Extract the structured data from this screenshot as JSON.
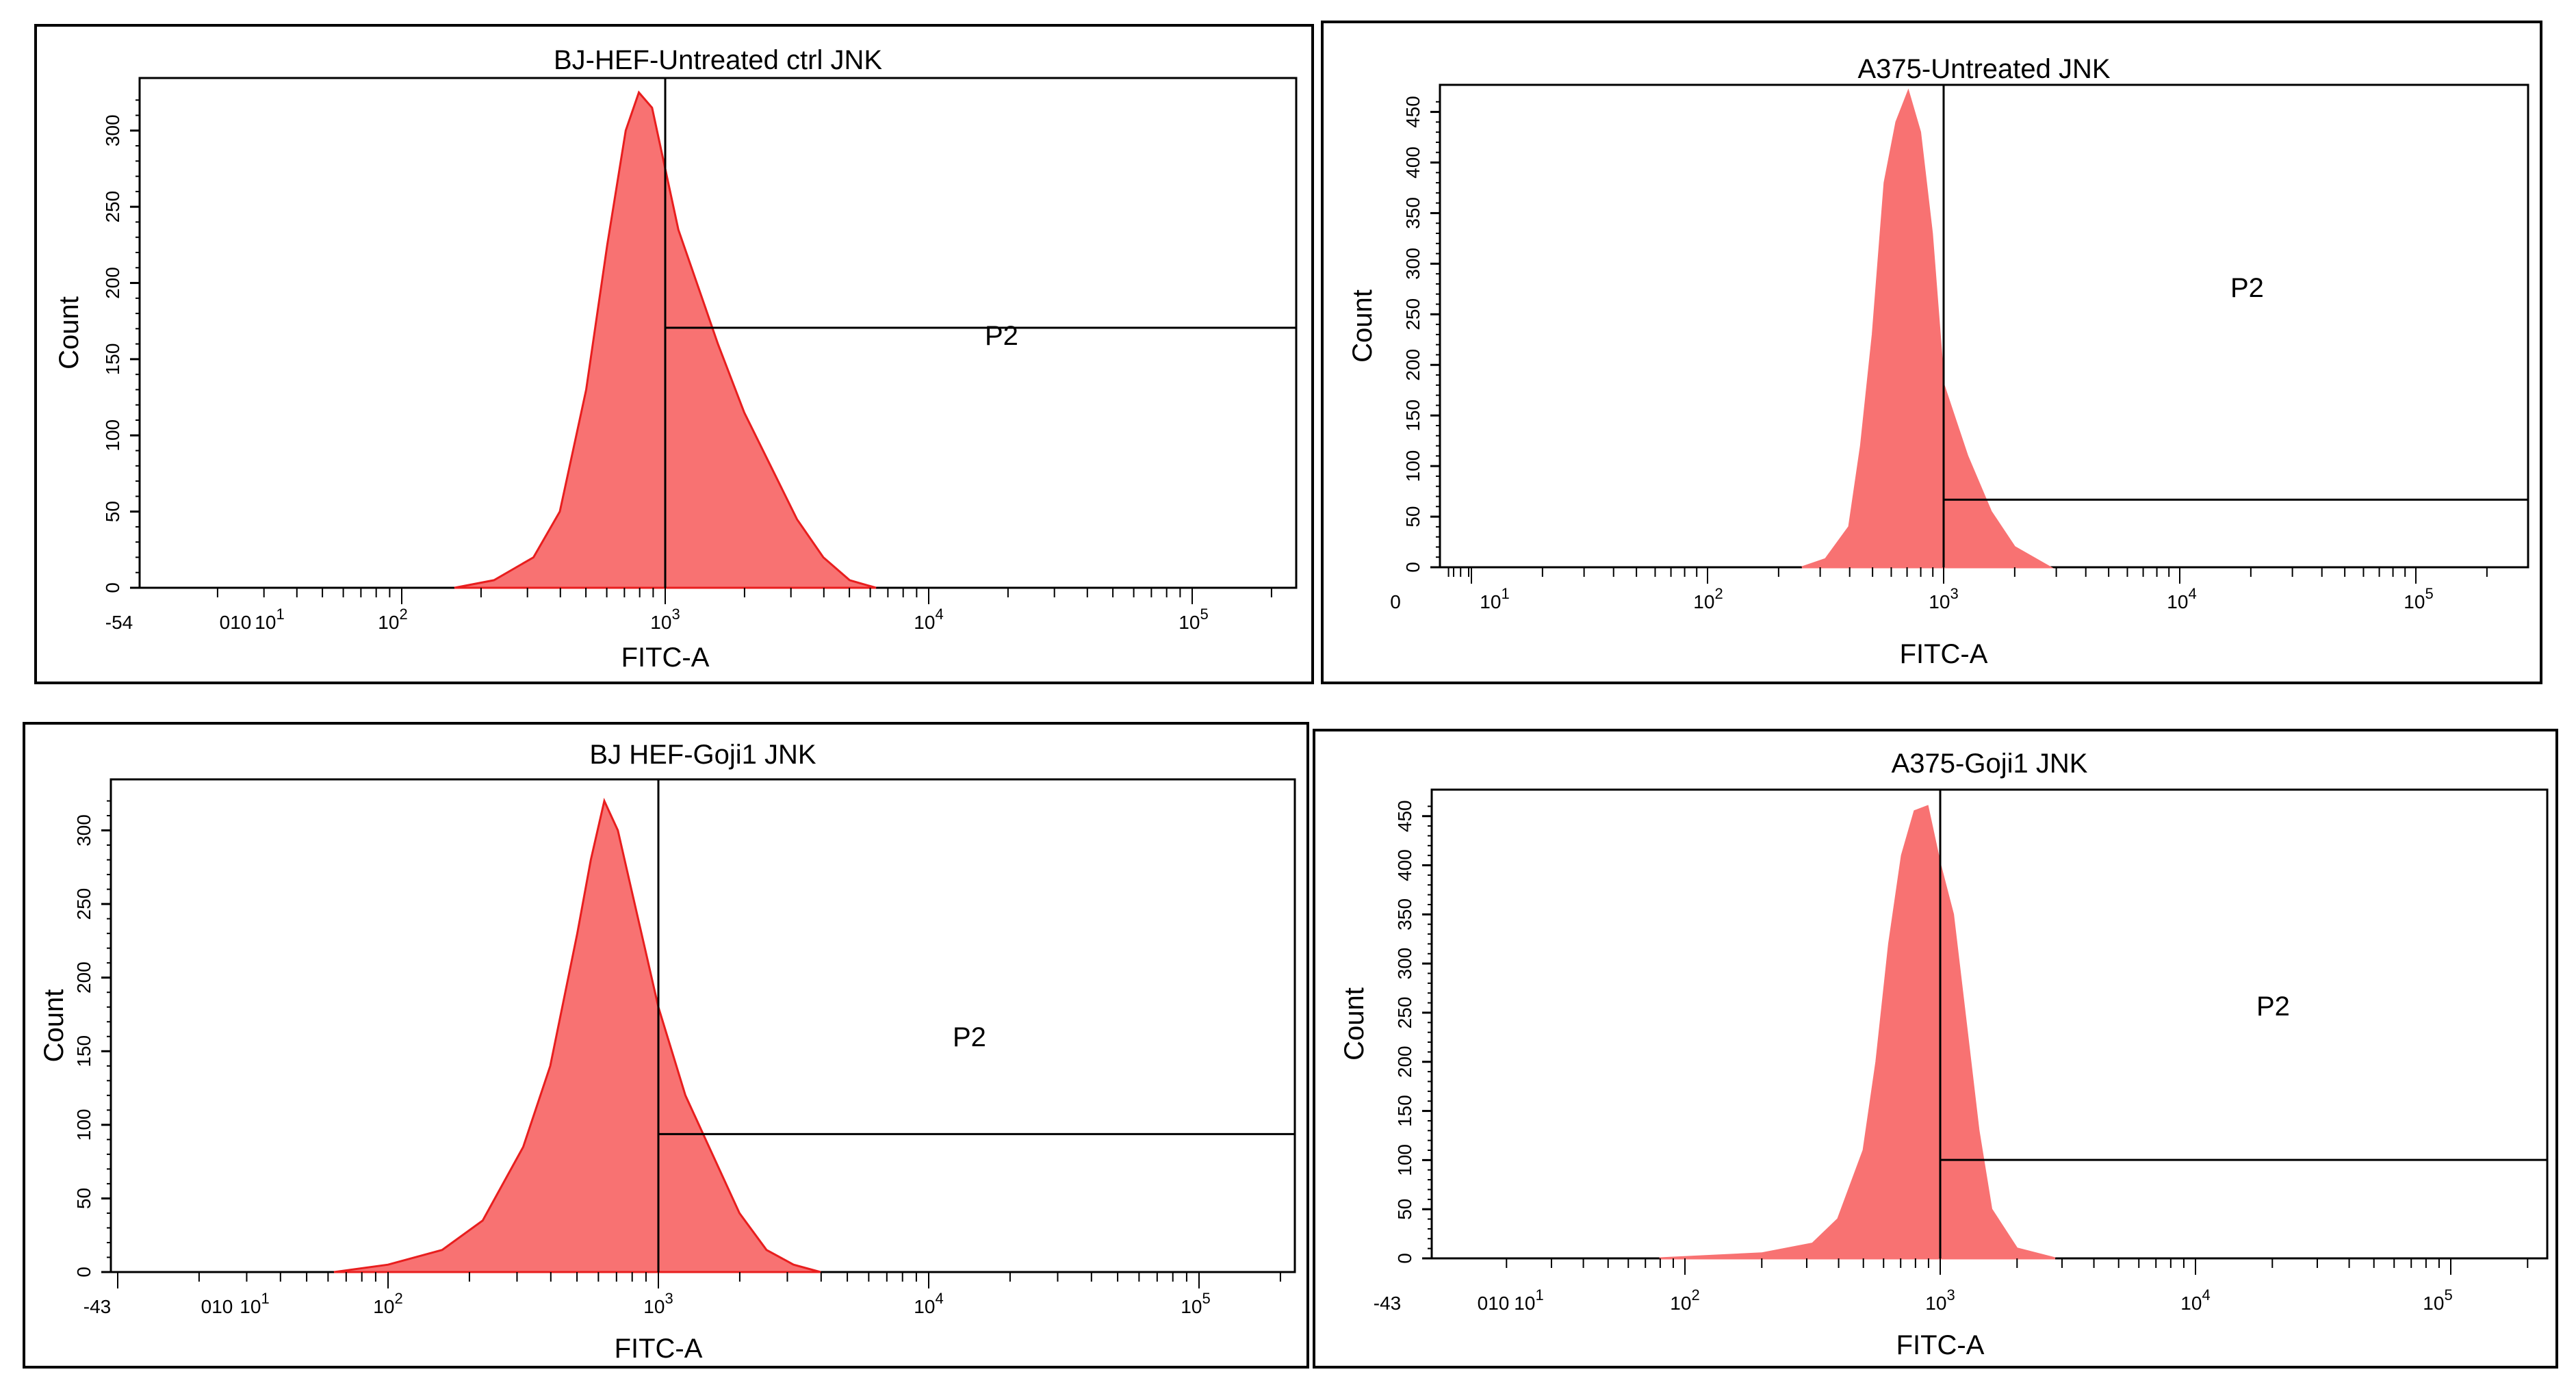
{
  "chart_data": [
    {
      "type": "histogram",
      "title": "BJ-HEF-Untreated ctrl JNK",
      "xlabel": "FITC-A",
      "ylabel": "Count",
      "xscale": "biexponential-log",
      "ylim": [
        0,
        330
      ],
      "yticks": [
        "0",
        "50",
        "100",
        "150",
        "200",
        "250",
        "300"
      ],
      "xticks": [
        "-54",
        "010",
        "10^1",
        "10^2",
        "10^3",
        "10^4",
        "10^5"
      ],
      "gate": {
        "name": "P2",
        "from": 1000,
        "to": 250000
      },
      "fill_color": "#f87272",
      "edge_color": "#e81e1e",
      "series": {
        "name": "events",
        "x_log10": [
          2.2,
          2.35,
          2.5,
          2.6,
          2.7,
          2.78,
          2.85,
          2.9,
          2.95,
          3.0,
          3.05,
          3.1,
          3.15,
          3.2,
          3.3,
          3.4,
          3.5,
          3.6,
          3.7,
          3.8
        ],
        "values": [
          0,
          5,
          20,
          50,
          130,
          225,
          300,
          325,
          315,
          275,
          235,
          210,
          185,
          160,
          115,
          80,
          45,
          20,
          5,
          0
        ]
      }
    },
    {
      "type": "histogram",
      "title": "A375-Untreated JNK",
      "xlabel": "FITC-A",
      "ylabel": "Count",
      "xscale": "biexponential-log",
      "ylim": [
        0,
        470
      ],
      "yticks": [
        "0",
        "50",
        "100",
        "150",
        "200",
        "250",
        "300",
        "350",
        "400",
        "450"
      ],
      "xticks": [
        "0",
        "10^1",
        "10^2",
        "10^3",
        "10^4",
        "10^5"
      ],
      "gate": {
        "name": "P2",
        "from": 1000,
        "to": 250000
      },
      "fill_color": "#f87272",
      "edge_color": "#f87272",
      "series": {
        "name": "events",
        "x_log10": [
          2.4,
          2.5,
          2.6,
          2.65,
          2.7,
          2.75,
          2.8,
          2.85,
          2.9,
          2.95,
          3.0,
          3.05,
          3.1,
          3.2,
          3.3,
          3.45
        ],
        "values": [
          0,
          8,
          40,
          120,
          230,
          380,
          440,
          470,
          430,
          330,
          180,
          145,
          110,
          55,
          20,
          0
        ]
      }
    },
    {
      "type": "histogram",
      "title": "BJ HEF-Goji1 JNK",
      "xlabel": "FITC-A",
      "ylabel": "Count",
      "xscale": "biexponential-log",
      "ylim": [
        0,
        330
      ],
      "yticks": [
        "0",
        "50",
        "100",
        "150",
        "200",
        "250",
        "300"
      ],
      "xticks": [
        "-43",
        "010",
        "10^1",
        "10^2",
        "10^3",
        "10^4",
        "10^5"
      ],
      "gate": {
        "name": "P2",
        "from": 1000,
        "to": 250000
      },
      "fill_color": "#f87272",
      "edge_color": "#e81e1e",
      "series": {
        "name": "events",
        "x_log10": [
          1.8,
          2.0,
          2.2,
          2.35,
          2.5,
          2.6,
          2.7,
          2.75,
          2.8,
          2.85,
          2.9,
          2.95,
          3.0,
          3.1,
          3.2,
          3.3,
          3.4,
          3.5,
          3.6
        ],
        "values": [
          0,
          5,
          15,
          35,
          85,
          140,
          230,
          280,
          320,
          300,
          260,
          220,
          180,
          120,
          80,
          40,
          15,
          5,
          0
        ]
      }
    },
    {
      "type": "histogram",
      "title": "A375-Goji1 JNK",
      "xlabel": "FITC-A",
      "ylabel": "Count",
      "xscale": "biexponential-log",
      "ylim": [
        0,
        470
      ],
      "yticks": [
        "0",
        "50",
        "100",
        "150",
        "200",
        "250",
        "300",
        "350",
        "400",
        "450"
      ],
      "xticks": [
        "-43",
        "010",
        "10^1",
        "10^2",
        "10^3",
        "10^4",
        "10^5"
      ],
      "gate": {
        "name": "P2",
        "from": 1000,
        "to": 250000
      },
      "fill_color": "#f87272",
      "edge_color": "#f87272",
      "series": {
        "name": "events",
        "x_log10": [
          1.9,
          2.3,
          2.5,
          2.6,
          2.7,
          2.75,
          2.8,
          2.85,
          2.9,
          2.95,
          3.0,
          3.05,
          3.1,
          3.15,
          3.2,
          3.3,
          3.45
        ],
        "values": [
          0,
          5,
          15,
          40,
          110,
          200,
          320,
          410,
          455,
          460,
          400,
          350,
          240,
          130,
          50,
          10,
          0
        ]
      }
    }
  ]
}
